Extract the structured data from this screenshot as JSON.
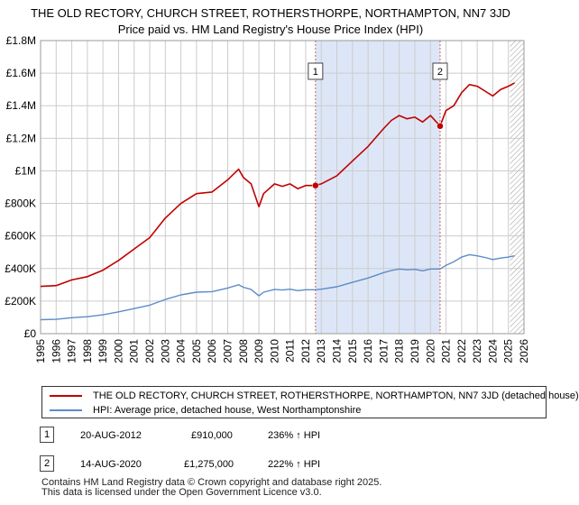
{
  "title_line1": "THE OLD RECTORY, CHURCH STREET, ROTHERSTHORPE, NORTHAMPTON, NN7 3JD",
  "title_line2": "Price paid vs. HM Land Registry's House Price Index (HPI)",
  "colors": {
    "property": "#c00000",
    "hpi": "#5b8cc8",
    "shade": "#dde6f7",
    "marker_line": "#d06060",
    "grid": "#cccccc"
  },
  "chart_data": {
    "type": "line",
    "title": "Price paid vs. HM Land Registry's House Price Index (HPI)",
    "xlabel": "",
    "ylabel": "",
    "xlim": [
      1995,
      2026
    ],
    "ylim": [
      0,
      1800000
    ],
    "grid": true,
    "y_ticks": [
      {
        "value": 0,
        "label": "£0"
      },
      {
        "value": 200000,
        "label": "£200K"
      },
      {
        "value": 400000,
        "label": "£400K"
      },
      {
        "value": 600000,
        "label": "£600K"
      },
      {
        "value": 800000,
        "label": "£800K"
      },
      {
        "value": 1000000,
        "label": "£1M"
      },
      {
        "value": 1200000,
        "label": "£1.2M"
      },
      {
        "value": 1400000,
        "label": "£1.4M"
      },
      {
        "value": 1600000,
        "label": "£1.6M"
      },
      {
        "value": 1800000,
        "label": "£1.8M"
      }
    ],
    "x_ticks": [
      "1995",
      "1996",
      "1997",
      "1998",
      "1999",
      "2000",
      "2001",
      "2002",
      "2003",
      "2004",
      "2005",
      "2006",
      "2007",
      "2008",
      "2009",
      "2010",
      "2011",
      "2012",
      "2013",
      "2014",
      "2015",
      "2016",
      "2017",
      "2018",
      "2019",
      "2020",
      "2021",
      "2022",
      "2023",
      "2024",
      "2025",
      "2026"
    ],
    "shaded_period": [
      2012.63,
      2020.62
    ],
    "hatched_from": 2025.1,
    "series": [
      {
        "name": "THE OLD RECTORY, CHURCH STREET, ROTHERSTHORPE, NORTHAMPTON, NN7 3JD (detached house)",
        "x": [
          1995,
          1996,
          1997,
          1998,
          1999,
          2000,
          2001,
          2002,
          2003,
          2004,
          2005,
          2006,
          2007,
          2007.7,
          2008,
          2008.5,
          2009,
          2009.3,
          2010,
          2010.5,
          2011,
          2011.5,
          2012,
          2012.63,
          2013,
          2014,
          2015,
          2016,
          2017,
          2017.5,
          2018,
          2018.5,
          2019,
          2019.5,
          2020,
          2020.62,
          2021,
          2021.5,
          2022,
          2022.5,
          2023,
          2023.5,
          2024,
          2024.5,
          2025,
          2025.4
        ],
        "values": [
          290000,
          295000,
          330000,
          350000,
          390000,
          450000,
          520000,
          590000,
          710000,
          800000,
          860000,
          870000,
          945000,
          1010000,
          960000,
          920000,
          780000,
          860000,
          920000,
          905000,
          920000,
          890000,
          910000,
          910000,
          920000,
          970000,
          1060000,
          1150000,
          1260000,
          1310000,
          1340000,
          1320000,
          1330000,
          1300000,
          1340000,
          1275000,
          1370000,
          1400000,
          1480000,
          1530000,
          1520000,
          1490000,
          1460000,
          1500000,
          1520000,
          1540000
        ]
      },
      {
        "name": "HPI: Average price, detached house, West Northamptonshire",
        "x": [
          1995,
          1996,
          1997,
          1998,
          1999,
          2000,
          2001,
          2002,
          2003,
          2004,
          2005,
          2006,
          2007,
          2007.7,
          2008,
          2008.5,
          2009,
          2009.3,
          2010,
          2010.5,
          2011,
          2011.5,
          2012,
          2012.63,
          2013,
          2014,
          2015,
          2016,
          2017,
          2017.5,
          2018,
          2018.5,
          2019,
          2019.5,
          2020,
          2020.62,
          2021,
          2021.5,
          2022,
          2022.5,
          2023,
          2023.5,
          2024,
          2024.5,
          2025,
          2025.4
        ],
        "values": [
          86000,
          88000,
          98000,
          104000,
          116000,
          134000,
          154000,
          175000,
          210000,
          238000,
          255000,
          258000,
          280000,
          300000,
          285000,
          272000,
          232000,
          255000,
          272000,
          268000,
          273000,
          264000,
          270000,
          270000,
          273000,
          288000,
          315000,
          342000,
          375000,
          388000,
          397000,
          392000,
          395000,
          386000,
          397000,
          397000,
          420000,
          442000,
          470000,
          485000,
          478000,
          468000,
          455000,
          464000,
          470000,
          478000
        ]
      }
    ],
    "annotations": [
      {
        "label": "1",
        "x": 2012.63,
        "value": 910000
      },
      {
        "label": "2",
        "x": 2020.62,
        "value": 1275000
      }
    ]
  },
  "transactions": [
    {
      "num": "1",
      "date": "20-AUG-2012",
      "price": "£910,000",
      "hpi": "236% ↑ HPI"
    },
    {
      "num": "2",
      "date": "14-AUG-2020",
      "price": "£1,275,000",
      "hpi": "222% ↑ HPI"
    }
  ],
  "footer_line1": "Contains HM Land Registry data © Crown copyright and database right 2025.",
  "footer_line2": "This data is licensed under the Open Government Licence v3.0."
}
